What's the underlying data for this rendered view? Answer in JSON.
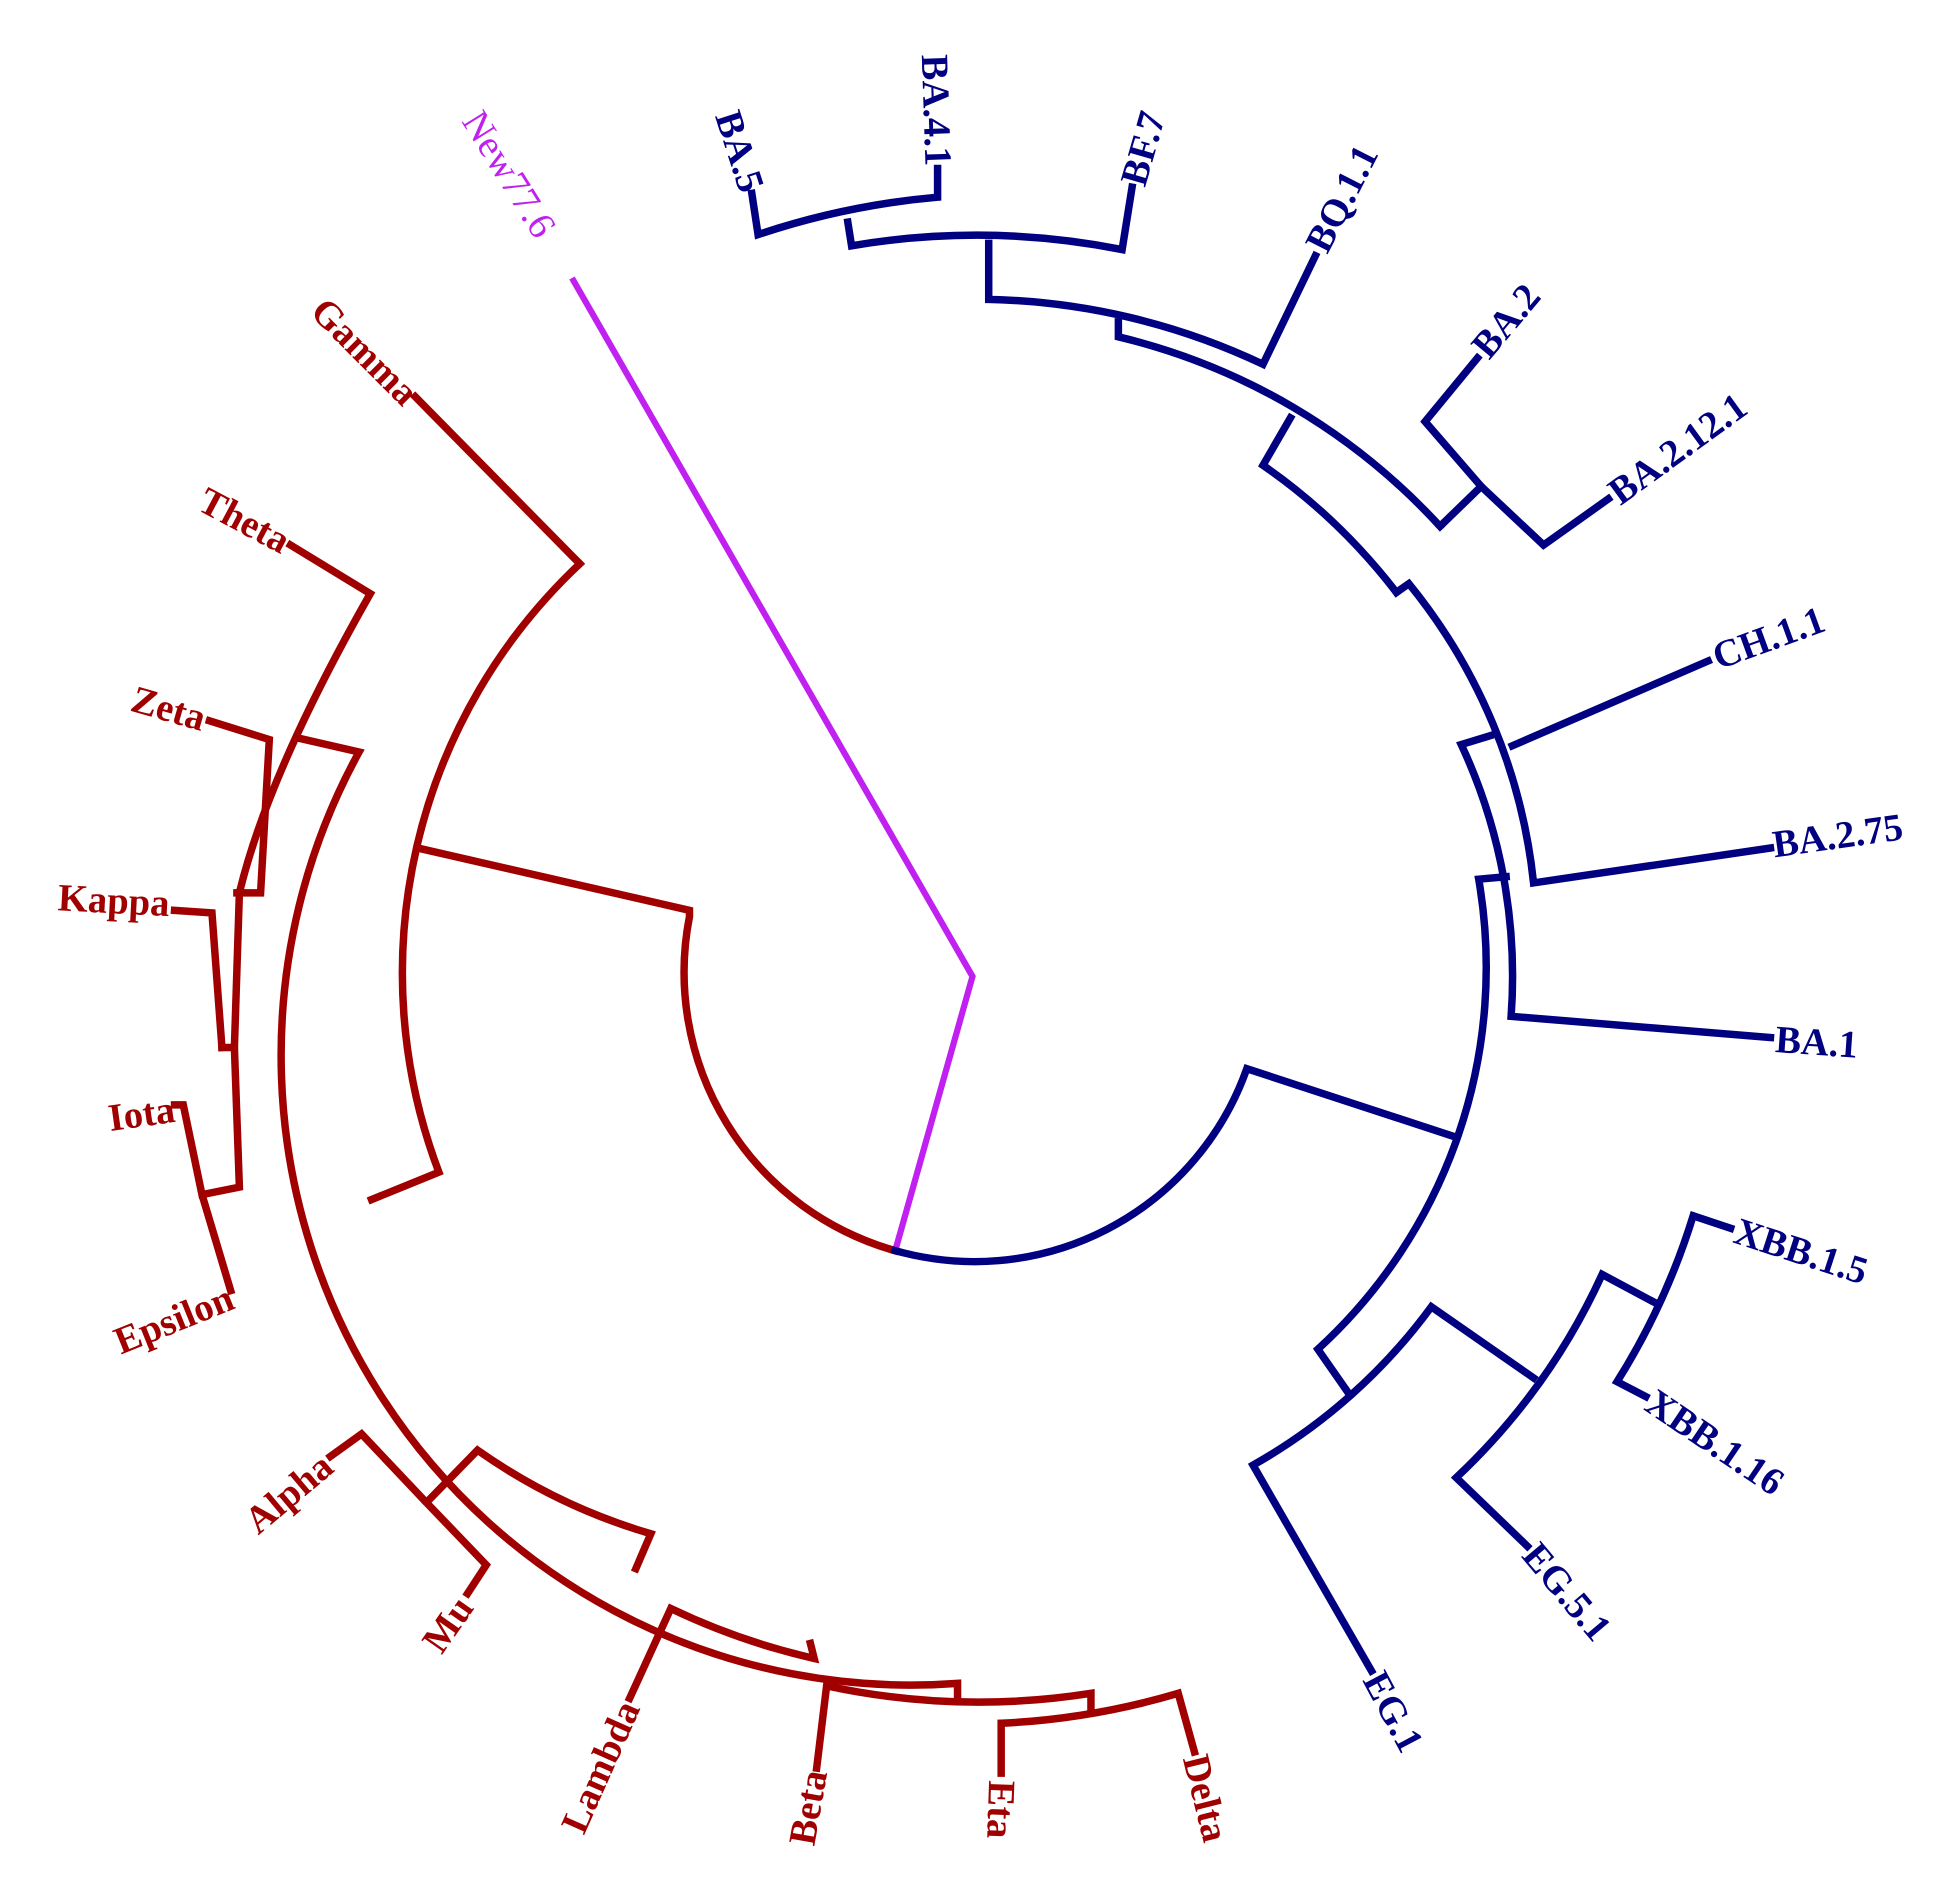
{
  "chart_data": {
    "type": "circular-phylogenetic-tree",
    "colors": {
      "red_clade": "#a00000",
      "blue_clade": "#000080",
      "query": "#c020f0"
    },
    "query_leaf": "New77.6",
    "red_clade_leaves": [
      "Gamma",
      "Theta",
      "Zeta",
      "Kappa",
      "Iota",
      "Epsilon",
      "Alpha",
      "Mu",
      "Lambda",
      "Beta",
      "Eta",
      "Delta"
    ],
    "blue_clade_leaves": [
      "BA.5",
      "BA.4.1",
      "BF.7",
      "BQ.1.1",
      "BA.2",
      "BA.2.12.1",
      "CH.1.1",
      "BA.2.75",
      "BA.1",
      "XBB.1.5",
      "XBB.1.16",
      "EG.5.1",
      "EG.1"
    ]
  }
}
